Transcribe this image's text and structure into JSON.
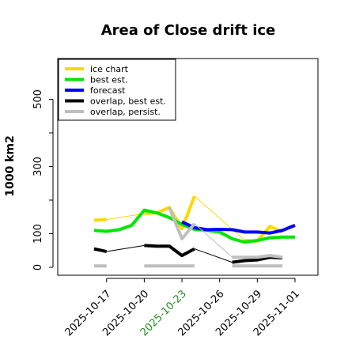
{
  "chart_data": {
    "type": "line",
    "title": "Area of Close drift ice",
    "ylabel": "1000 km2",
    "ylim": [
      -10,
      555
    ],
    "xlim": [
      "2025-10-15",
      "2025-11-01"
    ],
    "yticks": [
      0,
      100,
      300,
      500
    ],
    "xticks": [
      {
        "label": "2025-10-17",
        "date": "2025-10-17",
        "color": "#000000"
      },
      {
        "label": "2025-10-20",
        "date": "2025-10-20",
        "color": "#000000"
      },
      {
        "label": "2025-10-23",
        "date": "2025-10-23",
        "color": "#228B22"
      },
      {
        "label": "2025-10-26",
        "date": "2025-10-26",
        "color": "#000000"
      },
      {
        "label": "2025-10-29",
        "date": "2025-10-29",
        "color": "#000000"
      },
      {
        "label": "2025-11-01",
        "date": "2025-11-01",
        "color": "#000000"
      }
    ],
    "legend_position": "top-left",
    "series": [
      {
        "name": "ice chart",
        "color": "#FFD700",
        "thick_segments": [
          [
            [
              "2025-10-16",
              140
            ],
            [
              "2025-10-17",
              142
            ]
          ],
          [
            [
              "2025-10-20",
              160
            ],
            [
              "2025-10-21",
              162
            ],
            [
              "2025-10-22",
              178
            ],
            [
              "2025-10-23",
              115
            ],
            [
              "2025-10-24",
              212
            ]
          ],
          [
            [
              "2025-10-28",
              80
            ],
            [
              "2025-10-29",
              78
            ],
            [
              "2025-10-30",
              122
            ],
            [
              "2025-10-31",
              105
            ]
          ]
        ],
        "thin_segments": [
          [
            [
              "2025-10-17",
              142
            ],
            [
              "2025-10-20",
              160
            ]
          ],
          [
            [
              "2025-10-24",
              212
            ],
            [
              "2025-10-28",
              80
            ]
          ]
        ]
      },
      {
        "name": "best est.",
        "color": "#00E600",
        "thick_segments": [
          [
            [
              "2025-10-16",
              110
            ],
            [
              "2025-10-17",
              107
            ],
            [
              "2025-10-18",
              112
            ],
            [
              "2025-10-19",
              125
            ],
            [
              "2025-10-20",
              170
            ],
            [
              "2025-10-21",
              162
            ],
            [
              "2025-10-22",
              148
            ],
            [
              "2025-10-23",
              128
            ],
            [
              "2025-10-24",
              113
            ],
            [
              "2025-10-25",
              110
            ],
            [
              "2025-10-26",
              105
            ],
            [
              "2025-10-27",
              85
            ],
            [
              "2025-10-28",
              75
            ],
            [
              "2025-10-29",
              80
            ],
            [
              "2025-10-30",
              88
            ],
            [
              "2025-10-31",
              90
            ],
            [
              "2025-11-01",
              90
            ]
          ]
        ],
        "thin_segments": []
      },
      {
        "name": "forecast",
        "color": "#0000FF",
        "thick_segments": [
          [
            [
              "2025-10-23",
              135
            ],
            [
              "2025-10-24",
              118
            ],
            [
              "2025-10-25",
              112
            ],
            [
              "2025-10-26",
              113
            ],
            [
              "2025-10-27",
              112
            ],
            [
              "2025-10-28",
              105
            ],
            [
              "2025-10-29",
              105
            ],
            [
              "2025-10-30",
              102
            ],
            [
              "2025-10-31",
              110
            ],
            [
              "2025-11-01",
              125
            ]
          ]
        ],
        "thin_segments": []
      },
      {
        "name": "overlap, best est.",
        "color": "#000000",
        "thick_segments": [
          [
            [
              "2025-10-16",
              55
            ],
            [
              "2025-10-17",
              47
            ]
          ],
          [
            [
              "2025-10-20",
              65
            ],
            [
              "2025-10-21",
              63
            ],
            [
              "2025-10-22",
              63
            ],
            [
              "2025-10-23",
              35
            ],
            [
              "2025-10-24",
              55
            ]
          ],
          [
            [
              "2025-10-27",
              15
            ],
            [
              "2025-10-28",
              20
            ],
            [
              "2025-10-29",
              22
            ],
            [
              "2025-10-30",
              30
            ],
            [
              "2025-10-31",
              28
            ]
          ]
        ],
        "thin_segments": [
          [
            [
              "2025-10-17",
              47
            ],
            [
              "2025-10-20",
              65
            ]
          ],
          [
            [
              "2025-10-24",
              55
            ],
            [
              "2025-10-27",
              15
            ]
          ]
        ]
      },
      {
        "name": "overlap, persist.",
        "color": "#BEBEBE",
        "thick_segments": [
          [
            [
              "2025-10-16",
              4
            ],
            [
              "2025-10-17",
              4
            ]
          ],
          [
            [
              "2025-10-20",
              4
            ],
            [
              "2025-10-21",
              4
            ],
            [
              "2025-10-22",
              4
            ],
            [
              "2025-10-23",
              4
            ],
            [
              "2025-10-24",
              4
            ]
          ],
          [
            [
              "2025-10-27",
              4
            ],
            [
              "2025-10-28",
              4
            ],
            [
              "2025-10-29",
              4
            ],
            [
              "2025-10-30",
              4
            ],
            [
              "2025-10-31",
              4
            ]
          ],
          [
            [
              "2025-10-22",
              178
            ],
            [
              "2025-10-23",
              85
            ],
            [
              "2025-10-24",
              130
            ]
          ],
          [
            [
              "2025-10-27",
              30
            ],
            [
              "2025-10-28",
              30
            ],
            [
              "2025-10-29",
              30
            ],
            [
              "2025-10-30",
              35
            ],
            [
              "2025-10-31",
              30
            ]
          ]
        ],
        "thin_segments": [
          [
            [
              "2025-10-24",
              130
            ],
            [
              "2025-10-27",
              30
            ]
          ]
        ]
      }
    ]
  }
}
